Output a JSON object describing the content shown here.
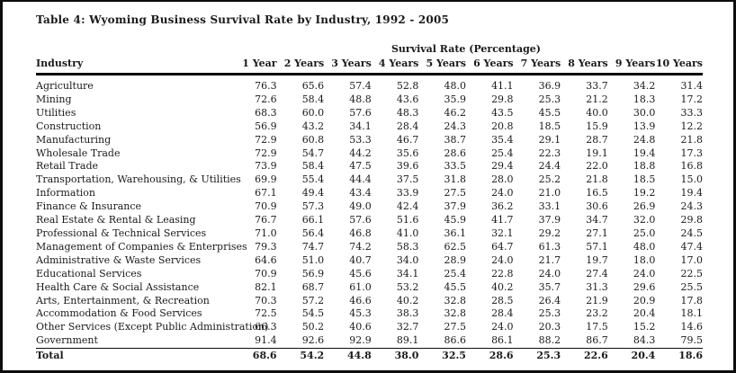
{
  "title": "Table 4: Wyoming Business Survival Rate by Industry, 1992 - 2005",
  "table": {
    "group_header": "Survival Rate (Percentage)",
    "industry_header": "Industry",
    "year_headers": [
      "1 Year",
      "2 Years",
      "3 Years",
      "4 Years",
      "5 Years",
      "6 Years",
      "7 Years",
      "8 Years",
      "9 Years",
      "10 Years"
    ],
    "rows": [
      {
        "industry": "Agriculture",
        "values": [
          "76.3",
          "65.6",
          "57.4",
          "52.8",
          "48.0",
          "41.1",
          "36.9",
          "33.7",
          "34.2",
          "31.4"
        ]
      },
      {
        "industry": "Mining",
        "values": [
          "72.6",
          "58.4",
          "48.8",
          "43.6",
          "35.9",
          "29.8",
          "25.3",
          "21.2",
          "18.3",
          "17.2"
        ]
      },
      {
        "industry": "Utilities",
        "values": [
          "68.3",
          "60.0",
          "57.6",
          "48.3",
          "46.2",
          "43.5",
          "45.5",
          "40.0",
          "30.0",
          "33.3"
        ]
      },
      {
        "industry": "Construction",
        "values": [
          "56.9",
          "43.2",
          "34.1",
          "28.4",
          "24.3",
          "20.8",
          "18.5",
          "15.9",
          "13.9",
          "12.2"
        ]
      },
      {
        "industry": "Manufacturing",
        "values": [
          "72.9",
          "60.8",
          "53.3",
          "46.7",
          "38.7",
          "35.4",
          "29.1",
          "28.7",
          "24.8",
          "21.8"
        ]
      },
      {
        "industry": "Wholesale Trade",
        "values": [
          "72.9",
          "54.7",
          "44.2",
          "35.6",
          "28.6",
          "25.4",
          "22.3",
          "19.1",
          "19.4",
          "17.3"
        ]
      },
      {
        "industry": "Retail Trade",
        "values": [
          "73.9",
          "58.4",
          "47.5",
          "39.6",
          "33.5",
          "29.4",
          "24.4",
          "22.0",
          "18.8",
          "16.8"
        ]
      },
      {
        "industry": "Transportation, Warehousing, & Utilities",
        "values": [
          "69.9",
          "55.4",
          "44.4",
          "37.5",
          "31.8",
          "28.0",
          "25.2",
          "21.8",
          "18.5",
          "15.0"
        ]
      },
      {
        "industry": "Information",
        "values": [
          "67.1",
          "49.4",
          "43.4",
          "33.9",
          "27.5",
          "24.0",
          "21.0",
          "16.5",
          "19.2",
          "19.4"
        ]
      },
      {
        "industry": "Finance & Insurance",
        "values": [
          "70.9",
          "57.3",
          "49.0",
          "42.4",
          "37.9",
          "36.2",
          "33.1",
          "30.6",
          "26.9",
          "24.3"
        ]
      },
      {
        "industry": "Real Estate & Rental & Leasing",
        "values": [
          "76.7",
          "66.1",
          "57.6",
          "51.6",
          "45.9",
          "41.7",
          "37.9",
          "34.7",
          "32.0",
          "29.8"
        ]
      },
      {
        "industry": "Professional & Technical Services",
        "values": [
          "71.0",
          "56.4",
          "46.8",
          "41.0",
          "36.1",
          "32.1",
          "29.2",
          "27.1",
          "25.0",
          "24.5"
        ]
      },
      {
        "industry": "Management of Companies & Enterprises",
        "values": [
          "79.3",
          "74.7",
          "74.2",
          "58.3",
          "62.5",
          "64.7",
          "61.3",
          "57.1",
          "48.0",
          "47.4"
        ]
      },
      {
        "industry": "Administrative & Waste Services",
        "values": [
          "64.6",
          "51.0",
          "40.7",
          "34.0",
          "28.9",
          "24.0",
          "21.7",
          "19.7",
          "18.0",
          "17.0"
        ]
      },
      {
        "industry": "Educational Services",
        "values": [
          "70.9",
          "56.9",
          "45.6",
          "34.1",
          "25.4",
          "22.8",
          "24.0",
          "27.4",
          "24.0",
          "22.5"
        ]
      },
      {
        "industry": "Health Care & Social Assistance",
        "values": [
          "82.1",
          "68.7",
          "61.0",
          "53.2",
          "45.5",
          "40.2",
          "35.7",
          "31.3",
          "29.6",
          "25.5"
        ]
      },
      {
        "industry": "Arts, Entertainment, & Recreation",
        "values": [
          "70.3",
          "57.2",
          "46.6",
          "40.2",
          "32.8",
          "28.5",
          "26.4",
          "21.9",
          "20.9",
          "17.8"
        ]
      },
      {
        "industry": "Accommodation & Food Services",
        "values": [
          "72.5",
          "54.5",
          "45.3",
          "38.3",
          "32.8",
          "28.4",
          "25.3",
          "23.2",
          "20.4",
          "18.1"
        ]
      },
      {
        "industry": "Other Services (Except Public Administration)",
        "values": [
          "66.3",
          "50.2",
          "40.6",
          "32.7",
          "27.5",
          "24.0",
          "20.3",
          "17.5",
          "15.2",
          "14.6"
        ]
      },
      {
        "industry": "Government",
        "values": [
          "91.4",
          "92.6",
          "92.9",
          "89.1",
          "86.6",
          "86.1",
          "88.2",
          "86.7",
          "84.3",
          "79.5"
        ]
      }
    ],
    "total": {
      "industry": "Total",
      "values": [
        "68.6",
        "54.2",
        "44.8",
        "38.0",
        "32.5",
        "28.6",
        "25.3",
        "22.6",
        "20.4",
        "18.6"
      ]
    }
  }
}
